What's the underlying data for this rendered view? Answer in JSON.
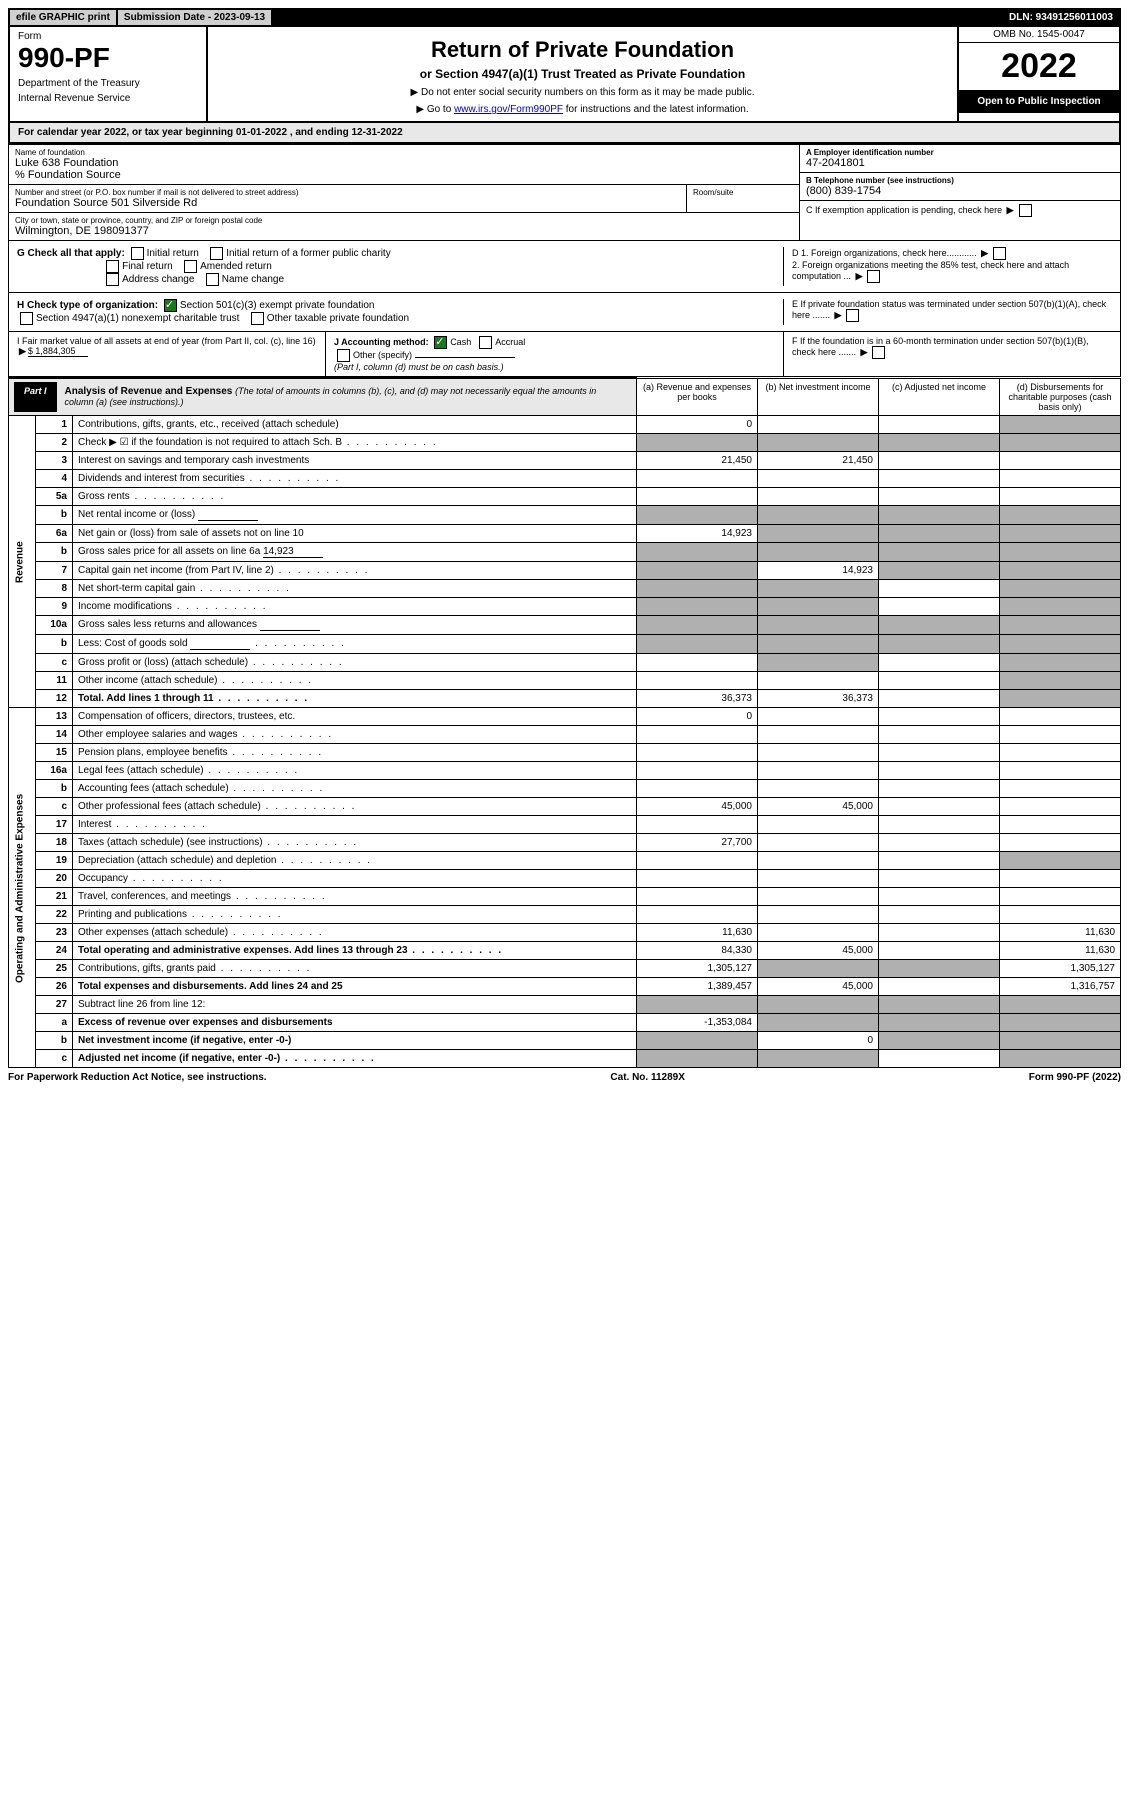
{
  "top": {
    "efile": "efile GRAPHIC print",
    "submission_label": "Submission Date - 2023-09-13",
    "dln": "DLN: 93491256011003"
  },
  "header": {
    "form_word": "Form",
    "form_no": "990-PF",
    "dept": "Department of the Treasury",
    "irs": "Internal Revenue Service",
    "title": "Return of Private Foundation",
    "subtitle": "or Section 4947(a)(1) Trust Treated as Private Foundation",
    "note1": "▶ Do not enter social security numbers on this form as it may be made public.",
    "note2_pre": "▶ Go to ",
    "note2_link": "www.irs.gov/Form990PF",
    "note2_post": " for instructions and the latest information.",
    "omb": "OMB No. 1545-0047",
    "year": "2022",
    "open": "Open to Public Inspection"
  },
  "calendar": {
    "text_pre": "For calendar year 2022, or tax year beginning ",
    "begin": "01-01-2022",
    "text_mid": " , and ending ",
    "end": "12-31-2022"
  },
  "info": {
    "name_lbl": "Name of foundation",
    "name": "Luke 638 Foundation",
    "care": "% Foundation Source",
    "addr_lbl": "Number and street (or P.O. box number if mail is not delivered to street address)",
    "addr": "Foundation Source 501 Silverside Rd",
    "room_lbl": "Room/suite",
    "city_lbl": "City or town, state or province, country, and ZIP or foreign postal code",
    "city": "Wilmington, DE 198091377",
    "A_lbl": "A Employer identification number",
    "A_val": "47-2041801",
    "B_lbl": "B Telephone number (see instructions)",
    "B_val": "(800) 839-1754",
    "C_lbl": "C If exemption application is pending, check here",
    "D1": "D 1. Foreign organizations, check here............",
    "D2": "2. Foreign organizations meeting the 85% test, check here and attach computation ...",
    "E": "E  If private foundation status was terminated under section 507(b)(1)(A), check here .......",
    "F": "F  If the foundation is in a 60-month termination under section 507(b)(1)(B), check here .......",
    "G_lbl": "G Check all that apply:",
    "G_opts": [
      "Initial return",
      "Initial return of a former public charity",
      "Final return",
      "Amended return",
      "Address change",
      "Name change"
    ],
    "H_lbl": "H Check type of organization:",
    "H_opt1": "Section 501(c)(3) exempt private foundation",
    "H_opt2": "Section 4947(a)(1) nonexempt charitable trust",
    "H_opt3": "Other taxable private foundation",
    "I_lbl": "I Fair market value of all assets at end of year (from Part II, col. (c), line 16)",
    "I_val": "$  1,884,305",
    "J_lbl": "J Accounting method:",
    "J_cash": "Cash",
    "J_accrual": "Accrual",
    "J_other": "Other (specify)",
    "J_note": "(Part I, column (d) must be on cash basis.)"
  },
  "part1": {
    "label": "Part I",
    "title": "Analysis of Revenue and Expenses",
    "sub": "(The total of amounts in columns (b), (c), and (d) may not necessarily equal the amounts in column (a) (see instructions).)",
    "cols": {
      "a": "(a) Revenue and expenses per books",
      "b": "(b) Net investment income",
      "c": "(c) Adjusted net income",
      "d": "(d) Disbursements for charitable purposes (cash basis only)"
    }
  },
  "side": {
    "rev": "Revenue",
    "exp": "Operating and Administrative Expenses"
  },
  "rows": [
    {
      "n": "1",
      "desc": "Contributions, gifts, grants, etc., received (attach schedule)",
      "a": "0",
      "d_shade": true
    },
    {
      "n": "2",
      "desc": "Check ▶ ☑ if the foundation is not required to attach Sch. B",
      "shade_all": true,
      "dots": true
    },
    {
      "n": "3",
      "desc": "Interest on savings and temporary cash investments",
      "a": "21,450",
      "b": "21,450"
    },
    {
      "n": "4",
      "desc": "Dividends and interest from securities",
      "dots": true
    },
    {
      "n": "5a",
      "desc": "Gross rents",
      "dots": true
    },
    {
      "n": "b",
      "desc": "Net rental income or (loss)",
      "shade_abcd": true,
      "inline": true
    },
    {
      "n": "6a",
      "desc": "Net gain or (loss) from sale of assets not on line 10",
      "a": "14,923",
      "bcd_shade": true
    },
    {
      "n": "b",
      "desc": "Gross sales price for all assets on line 6a",
      "inline_val": "14,923",
      "shade_abcd": true
    },
    {
      "n": "7",
      "desc": "Capital gain net income (from Part IV, line 2)",
      "a_shade": true,
      "b": "14,923",
      "cd_shade": true,
      "dots": true
    },
    {
      "n": "8",
      "desc": "Net short-term capital gain",
      "ab_shade": true,
      "d_shade": true,
      "dots": true
    },
    {
      "n": "9",
      "desc": "Income modifications",
      "ab_shade": true,
      "d_shade": true,
      "dots": true
    },
    {
      "n": "10a",
      "desc": "Gross sales less returns and allowances",
      "shade_abcd": true,
      "inline": true
    },
    {
      "n": "b",
      "desc": "Less: Cost of goods sold",
      "shade_abcd": true,
      "inline": true,
      "dots": true
    },
    {
      "n": "c",
      "desc": "Gross profit or (loss) (attach schedule)",
      "b_shade": true,
      "d_shade": true,
      "dots": true
    },
    {
      "n": "11",
      "desc": "Other income (attach schedule)",
      "d_shade": true,
      "dots": true
    },
    {
      "n": "12",
      "desc": "Total. Add lines 1 through 11",
      "bold": true,
      "a": "36,373",
      "b": "36,373",
      "d_shade": true,
      "dots": true
    }
  ],
  "exp_rows": [
    {
      "n": "13",
      "desc": "Compensation of officers, directors, trustees, etc.",
      "a": "0"
    },
    {
      "n": "14",
      "desc": "Other employee salaries and wages",
      "dots": true
    },
    {
      "n": "15",
      "desc": "Pension plans, employee benefits",
      "dots": true
    },
    {
      "n": "16a",
      "desc": "Legal fees (attach schedule)",
      "dots": true
    },
    {
      "n": "b",
      "desc": "Accounting fees (attach schedule)",
      "dots": true
    },
    {
      "n": "c",
      "desc": "Other professional fees (attach schedule)",
      "a": "45,000",
      "b": "45,000",
      "dots": true
    },
    {
      "n": "17",
      "desc": "Interest",
      "dots": true
    },
    {
      "n": "18",
      "desc": "Taxes (attach schedule) (see instructions)",
      "a": "27,700",
      "dots": true
    },
    {
      "n": "19",
      "desc": "Depreciation (attach schedule) and depletion",
      "d_shade": true,
      "dots": true
    },
    {
      "n": "20",
      "desc": "Occupancy",
      "dots": true
    },
    {
      "n": "21",
      "desc": "Travel, conferences, and meetings",
      "dots": true
    },
    {
      "n": "22",
      "desc": "Printing and publications",
      "dots": true
    },
    {
      "n": "23",
      "desc": "Other expenses (attach schedule)",
      "a": "11,630",
      "d": "11,630",
      "dots": true
    },
    {
      "n": "24",
      "desc": "Total operating and administrative expenses. Add lines 13 through 23",
      "bold": true,
      "a": "84,330",
      "b": "45,000",
      "d": "11,630",
      "dots": true
    },
    {
      "n": "25",
      "desc": "Contributions, gifts, grants paid",
      "a": "1,305,127",
      "b_shade": true,
      "c_shade": true,
      "d": "1,305,127",
      "dots": true
    },
    {
      "n": "26",
      "desc": "Total expenses and disbursements. Add lines 24 and 25",
      "bold": true,
      "a": "1,389,457",
      "b": "45,000",
      "d": "1,316,757"
    },
    {
      "n": "27",
      "desc": "Subtract line 26 from line 12:",
      "shade_abcd": true
    },
    {
      "n": "a",
      "desc": "Excess of revenue over expenses and disbursements",
      "bold": true,
      "a": "-1,353,084",
      "bcd_shade": true
    },
    {
      "n": "b",
      "desc": "Net investment income (if negative, enter -0-)",
      "bold": true,
      "a_shade": true,
      "b": "0",
      "cd_shade": true
    },
    {
      "n": "c",
      "desc": "Adjusted net income (if negative, enter -0-)",
      "bold": true,
      "ab_shade": true,
      "d_shade": true,
      "dots": true
    }
  ],
  "footer": {
    "left": "For Paperwork Reduction Act Notice, see instructions.",
    "mid": "Cat. No. 11289X",
    "right": "Form 990-PF (2022)"
  }
}
